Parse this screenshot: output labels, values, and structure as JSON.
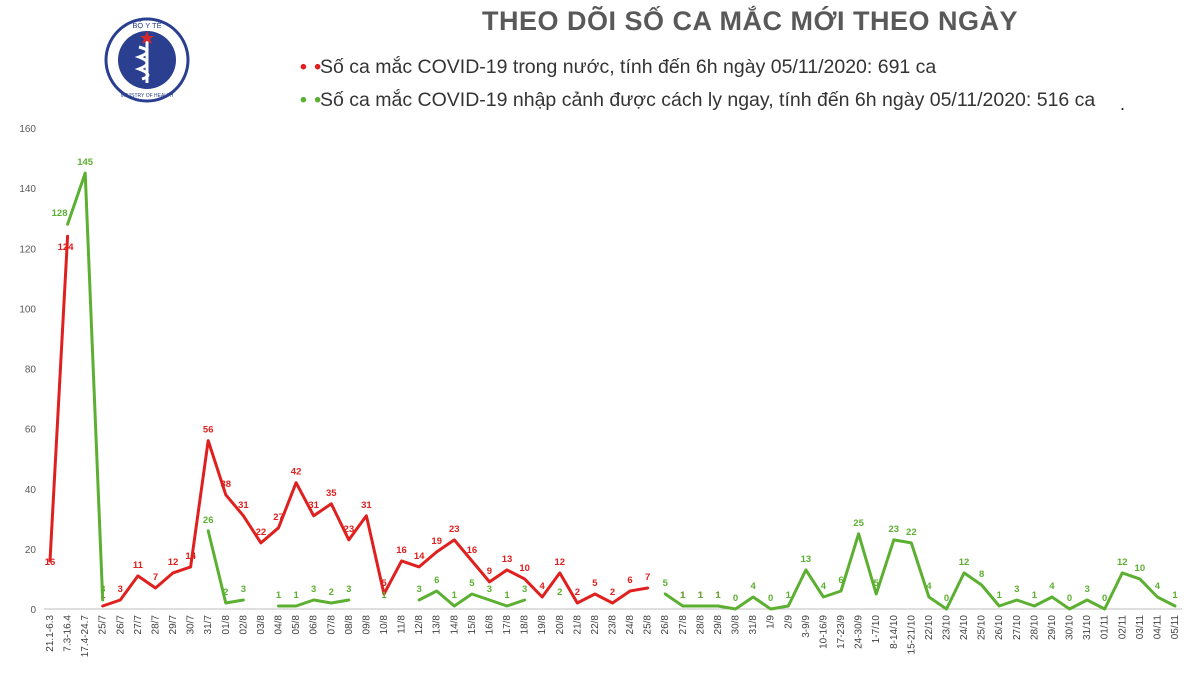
{
  "title": "THEO DÕI SỐ CA MẮC MỚI THEO NGÀY",
  "logo": {
    "top_text": "BỘ Y TẾ",
    "bottom_text": "MINISTRY OF HEALTH"
  },
  "colors": {
    "domestic": "#e0201e",
    "imported": "#5cb031",
    "title": "#595959",
    "axis": "#595959"
  },
  "chart_data": {
    "type": "line",
    "ylim": [
      0,
      160
    ],
    "yticks": [
      0,
      20,
      40,
      60,
      80,
      100,
      120,
      140,
      160
    ],
    "categories": [
      "21.1-6.3",
      "7.3-16.4",
      "17.4-24.7",
      "25/7",
      "26/7",
      "27/7",
      "28/7",
      "29/7",
      "30/7",
      "31/7",
      "01/8",
      "02/8",
      "03/8",
      "04/8",
      "05/8",
      "06/8",
      "07/8",
      "08/8",
      "09/8",
      "10/8",
      "11/8",
      "12/8",
      "13/8",
      "14/8",
      "15/8",
      "16/8",
      "17/8",
      "18/8",
      "19/8",
      "20/8",
      "21/8",
      "22/8",
      "23/8",
      "24/8",
      "25/8",
      "26/8",
      "27/8",
      "28/8",
      "29/8",
      "30/8",
      "31/8",
      "1/9",
      "2/9",
      "3-9/9",
      "10-16/9",
      "17-23/9",
      "24-30/9",
      "1-7/10",
      "8-14/10",
      "15-21/10",
      "22/10",
      "23/10",
      "24/10",
      "25/10",
      "26/10",
      "27/10",
      "28/10",
      "29/10",
      "30/10",
      "31/10",
      "01/11",
      "02/11",
      "03/11",
      "04/11",
      "05/11"
    ],
    "series": [
      {
        "name": "Số ca mắc COVID-19 trong nước, tính đến 6h ngày 05/11/2020: 691 ca",
        "values": [
          16,
          124,
          null,
          1,
          3,
          11,
          7,
          12,
          14,
          56,
          38,
          31,
          22,
          27,
          42,
          31,
          35,
          23,
          31,
          5,
          16,
          14,
          19,
          23,
          16,
          9,
          13,
          10,
          4,
          12,
          2,
          5,
          2,
          6,
          7,
          null,
          1,
          1,
          1,
          null,
          null,
          null,
          null,
          null,
          null,
          null,
          null,
          null,
          null,
          null,
          null,
          null,
          null,
          null,
          null,
          null,
          null,
          null,
          null,
          null,
          null,
          null,
          null,
          null,
          null
        ]
      },
      {
        "name": "Số ca mắc COVID-19 nhập cảnh được cách ly ngay, tính đến 6h ngày 05/11/2020: 516 ca",
        "values": [
          null,
          128,
          145,
          3,
          null,
          null,
          null,
          null,
          null,
          26,
          2,
          3,
          null,
          1,
          1,
          3,
          2,
          3,
          null,
          1,
          null,
          3,
          6,
          1,
          5,
          3,
          1,
          3,
          null,
          2,
          null,
          null,
          null,
          null,
          null,
          5,
          1,
          1,
          1,
          0,
          4,
          0,
          1,
          13,
          4,
          6,
          25,
          5,
          23,
          22,
          4,
          0,
          12,
          8,
          1,
          3,
          1,
          4,
          0,
          3,
          0,
          12,
          10,
          4,
          1
        ]
      }
    ]
  }
}
